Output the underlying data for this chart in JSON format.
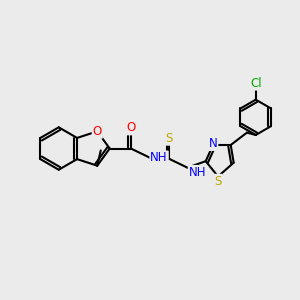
{
  "bg_color": "#ebebeb",
  "bond_color": "#000000",
  "bond_width": 1.5,
  "atom_colors": {
    "O": "#ff0000",
    "N": "#0000ff",
    "S": "#bbaa00",
    "Cl": "#00aa00",
    "C": "#000000"
  },
  "font_size": 8.5,
  "fig_size": [
    3.0,
    3.0
  ],
  "dpi": 100,
  "xlim": [
    0,
    10
  ],
  "ylim": [
    2,
    8
  ]
}
